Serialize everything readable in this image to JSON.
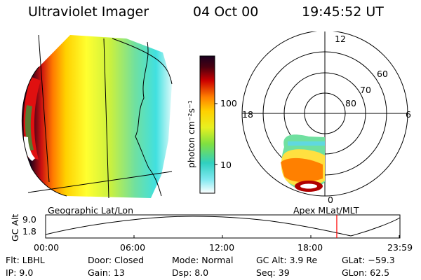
{
  "header": {
    "title": "Ultraviolet Imager",
    "date": "04 Oct 00",
    "time": "19:45:52 UT"
  },
  "colorbar": {
    "unit_label": "photon cm⁻²s⁻¹",
    "tick_100": "100",
    "tick_10": "10"
  },
  "geo_map": {
    "caption": "Geographic Lat/Lon"
  },
  "polar_map": {
    "caption": "Apex  MLat/MLT",
    "mlt_12": "12",
    "mlt_18": "18",
    "mlt_6": "6",
    "mlt_0": "0",
    "lat_60": "60",
    "lat_70": "70",
    "lat_80": "80"
  },
  "altitude_plot": {
    "ylabel": "GC Alt",
    "ytick_top": "9.0",
    "ytick_bottom": "1.8",
    "xticks": [
      "00:00",
      "06:00",
      "12:00",
      "18:00",
      "23:59"
    ],
    "marker_time_hours": 19.76,
    "marker_color": "#ff0000"
  },
  "info": {
    "filter": "Flt: LBHL",
    "ip": "IP:  9.0",
    "door": "Door: Closed",
    "gain": "Gain: 13",
    "mode": "Mode: Normal",
    "dsp": "Dsp:     8.0",
    "gc_alt": "GC Alt: 3.9 Re",
    "seq": "Seq: 39",
    "glat": "GLat:  −59.3",
    "glon": "GLon:  62.5"
  }
}
